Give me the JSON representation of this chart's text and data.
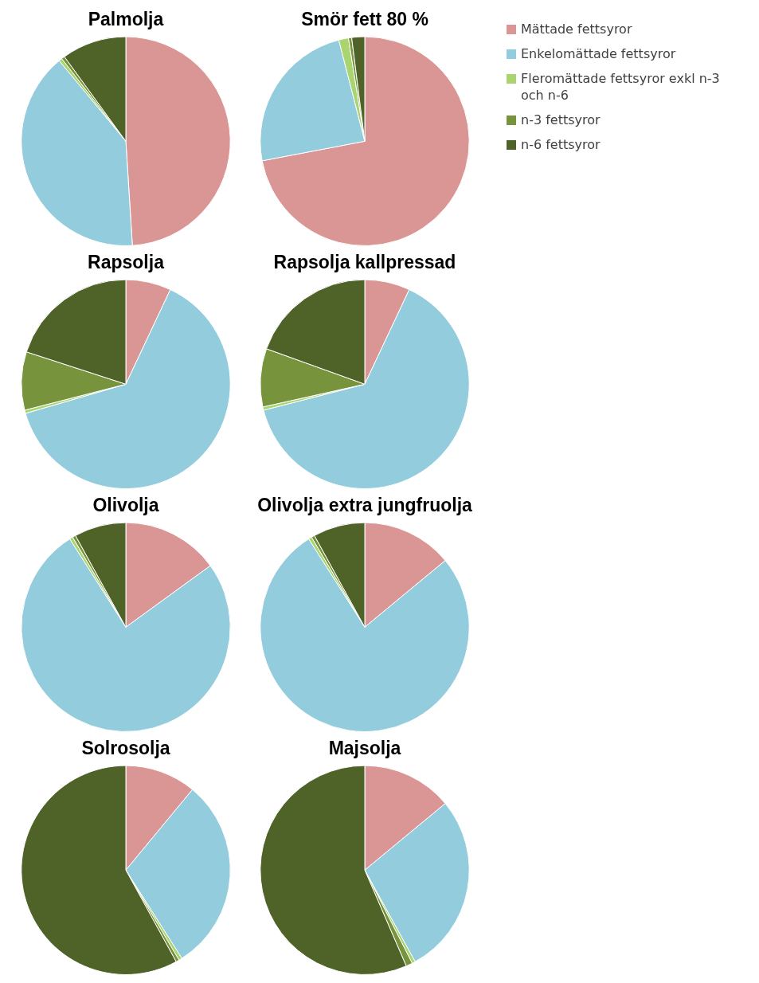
{
  "chart_data": [
    {
      "type": "pie",
      "title": "Palmolja",
      "categories": [
        null,
        null,
        null,
        null,
        null
      ],
      "values": [
        49,
        40,
        0.5,
        0.5,
        10
      ],
      "colors": [
        "#d99694",
        "#93cddd",
        "#a9d46f",
        "#77933c",
        "#4f6228"
      ]
    },
    {
      "type": "pie",
      "title": "Smör fett 80 %",
      "categories": [
        "Mättade fettsyror",
        "Enkelomättade fettsyror",
        "Fleromättade fettsyror exkl n-3 och n-6",
        "n-3 fettsyror",
        "n-6 fettsyror"
      ],
      "values": [
        72,
        24,
        1.5,
        0.5,
        2
      ],
      "colors": [
        "#d99694",
        "#93cddd",
        "#a9d46f",
        "#77933c",
        "#4f6228"
      ],
      "legend": "top right"
    },
    {
      "type": "pie",
      "title": "Rapsolja",
      "categories": [
        null,
        null,
        null,
        null,
        null
      ],
      "values": [
        7,
        63.5,
        0.5,
        9,
        20
      ],
      "colors": [
        "#d99694",
        "#93cddd",
        "#a9d46f",
        "#77933c",
        "#4f6228"
      ]
    },
    {
      "type": "pie",
      "title": "Rapsolja kallpressad",
      "categories": [
        null,
        null,
        null,
        null,
        null
      ],
      "values": [
        7,
        64,
        0.5,
        9,
        19.5
      ],
      "colors": [
        "#d99694",
        "#93cddd",
        "#a9d46f",
        "#77933c",
        "#4f6228"
      ]
    },
    {
      "type": "pie",
      "title": "Olivolja",
      "categories": [
        null,
        null,
        null,
        null,
        null
      ],
      "values": [
        15,
        76,
        0.5,
        0.5,
        8
      ],
      "colors": [
        "#d99694",
        "#93cddd",
        "#a9d46f",
        "#77933c",
        "#4f6228"
      ]
    },
    {
      "type": "pie",
      "title": "Olivolja extra jungfruolja",
      "categories": [
        null,
        null,
        null,
        null,
        null
      ],
      "values": [
        14,
        77,
        0.5,
        0.5,
        8
      ],
      "colors": [
        "#d99694",
        "#93cddd",
        "#a9d46f",
        "#77933c",
        "#4f6228"
      ]
    },
    {
      "type": "pie",
      "title": "Solrosolja",
      "categories": [
        null,
        null,
        null,
        null,
        null
      ],
      "values": [
        11,
        30,
        0.5,
        0.5,
        58
      ],
      "colors": [
        "#d99694",
        "#93cddd",
        "#a9d46f",
        "#77933c",
        "#4f6228"
      ]
    },
    {
      "type": "pie",
      "title": "Majsolja",
      "categories": [
        null,
        null,
        null,
        null,
        null
      ],
      "values": [
        14,
        28,
        0.5,
        1,
        56.5
      ],
      "colors": [
        "#d99694",
        "#93cddd",
        "#a9d46f",
        "#77933c",
        "#4f6228"
      ]
    }
  ]
}
